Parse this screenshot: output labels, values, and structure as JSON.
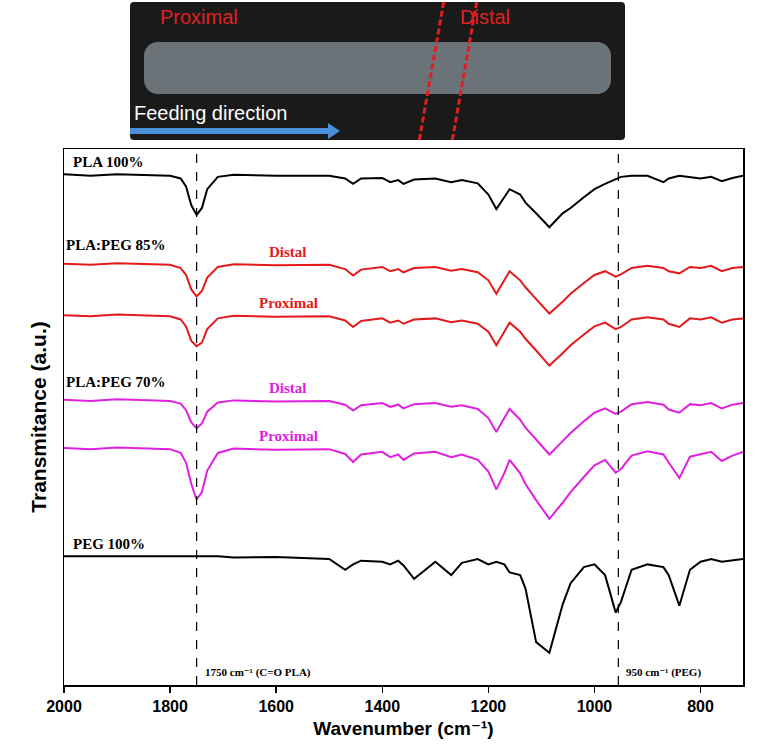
{
  "photo": {
    "left_label": "Proximal",
    "right_label": "Distal",
    "arrow_label": "Feeding direction"
  },
  "chart_data": {
    "type": "line",
    "xlabel": "Wavenumber (cm⁻¹)",
    "ylabel": "Transmitance (a.u.)",
    "xlim": [
      2000,
      720
    ],
    "xticks": [
      2000,
      1800,
      1600,
      1400,
      1200,
      1000,
      800
    ],
    "ylim": [
      0,
      100
    ],
    "tick_labels": "x",
    "grid": false,
    "x": [
      2000,
      1950,
      1900,
      1850,
      1800,
      1780,
      1770,
      1760,
      1750,
      1740,
      1730,
      1710,
      1680,
      1600,
      1500,
      1470,
      1455,
      1440,
      1400,
      1385,
      1370,
      1360,
      1340,
      1300,
      1270,
      1250,
      1220,
      1200,
      1185,
      1170,
      1160,
      1140,
      1130,
      1110,
      1085,
      1060,
      1045,
      1020,
      1000,
      980,
      960,
      950,
      930,
      900,
      870,
      860,
      840,
      820,
      800,
      780,
      760,
      740,
      720
    ],
    "series": [
      {
        "name": "PLA 100%",
        "color": "#000000",
        "values": [
          95.3,
          95.0,
          95.3,
          95.1,
          95.0,
          94.5,
          93,
          89.5,
          87.7,
          89,
          92.5,
          94.8,
          95.2,
          95,
          95,
          94.5,
          93.5,
          94.5,
          94.6,
          93.8,
          94.2,
          93.5,
          94.3,
          94.5,
          93.8,
          94.2,
          93.6,
          91.5,
          88.8,
          91,
          92.5,
          91.5,
          90,
          88,
          85.4,
          88,
          89,
          91,
          92.5,
          93.5,
          94.3,
          94.8,
          95,
          95,
          93.8,
          94.5,
          95,
          94.8,
          94.5,
          94.8,
          94,
          94.6,
          95
        ]
      },
      {
        "name": "Distal",
        "color": "#e31a1c",
        "values": [
          78.6,
          78.4,
          78.7,
          78.5,
          78.4,
          77.8,
          76.5,
          73.8,
          72.5,
          73.5,
          76,
          78,
          78.5,
          78.3,
          78.4,
          77.6,
          76.4,
          77.5,
          78,
          77.2,
          77.6,
          77,
          77.8,
          78,
          77.3,
          77.6,
          77,
          75.5,
          73,
          75.5,
          77.2,
          75.5,
          74.2,
          72,
          69.3,
          71.5,
          73,
          75,
          76.5,
          77.2,
          76.2,
          76.6,
          77.8,
          78.2,
          77.8,
          77.2,
          76.8,
          78,
          77.8,
          78.2,
          77.2,
          77.8,
          78
        ]
      },
      {
        "name": "Proximal",
        "color": "#e31a1c",
        "values": [
          69,
          68.8,
          69.1,
          68.9,
          68.8,
          68.2,
          66.9,
          64.2,
          63.2,
          63.9,
          66.4,
          68.4,
          68.9,
          68.7,
          68.8,
          68,
          66.8,
          67.9,
          68.4,
          67.6,
          68,
          67.4,
          68.2,
          68.4,
          67.7,
          68,
          67.4,
          65.9,
          63.4,
          65.9,
          67.6,
          65.9,
          64.6,
          62.4,
          59.6,
          61.9,
          63.4,
          65.4,
          66.9,
          67.6,
          66.4,
          66.8,
          68.2,
          68.6,
          68.2,
          67.4,
          66.8,
          68.4,
          68.2,
          68.6,
          67.6,
          68.2,
          68.4
        ]
      },
      {
        "name": "Distal",
        "color": "#e020e0",
        "values": [
          53.2,
          53,
          53.3,
          53.1,
          53,
          52.5,
          51.3,
          49,
          47.9,
          48.8,
          51,
          52.7,
          53.1,
          52.9,
          53,
          52.3,
          51.2,
          52.2,
          52.6,
          51.9,
          52.3,
          51.6,
          52.4,
          52.6,
          51.9,
          52.2,
          51.5,
          49.8,
          47.2,
          49.8,
          51.5,
          49.5,
          48,
          45.8,
          43,
          45.5,
          47,
          49.2,
          50.8,
          51.6,
          50.6,
          51,
          52.4,
          52.8,
          52.3,
          51.4,
          50.8,
          52.4,
          52.2,
          52.6,
          51.6,
          52.3,
          52.6
        ]
      },
      {
        "name": "Proximal",
        "color": "#e020e0",
        "values": [
          44.2,
          44,
          44.3,
          44.1,
          44,
          43.3,
          41.5,
          37.5,
          34.6,
          36,
          40,
          43.3,
          44.1,
          43.9,
          44,
          43.1,
          41.6,
          43,
          43.5,
          42.5,
          43,
          42,
          43.2,
          43.5,
          42.5,
          43,
          42,
          39.8,
          36.5,
          39.5,
          42,
          39.5,
          37.5,
          34.5,
          31,
          34,
          36,
          38.8,
          41,
          42,
          39.6,
          40.3,
          42.8,
          43.6,
          43,
          41.5,
          38.6,
          42.6,
          43,
          43.5,
          41.8,
          42.8,
          43.5
        ]
      },
      {
        "name": "PEG 100%",
        "color": "#000000",
        "values": [
          24,
          24,
          24,
          24,
          24,
          24,
          24,
          24,
          24,
          24,
          24,
          24,
          23.8,
          23.9,
          23.5,
          21.5,
          22.5,
          23.2,
          23,
          22.5,
          23.2,
          22.3,
          19.8,
          23,
          20.5,
          22.8,
          23.5,
          22.5,
          23,
          22.5,
          21,
          20.5,
          18,
          8,
          6,
          15,
          19,
          22,
          22.5,
          20.5,
          13.5,
          15.5,
          21.5,
          22.5,
          22,
          20.5,
          14.8,
          21.5,
          23,
          23.5,
          23,
          23.2,
          23.5
        ]
      }
    ],
    "annotations": [
      {
        "text": "PLA:PEG 85%",
        "x": 2000,
        "y": 82
      },
      {
        "text": "PLA:PEG 70%",
        "x": 2000,
        "y": 56.5
      }
    ],
    "vlines": [
      {
        "x": 1750,
        "label": "1750 cm⁻¹ (C=O PLA)",
        "line_style": "dash"
      },
      {
        "x": 955,
        "label": "950 cm⁻¹ (PEG)",
        "line_style": "dash"
      }
    ]
  }
}
